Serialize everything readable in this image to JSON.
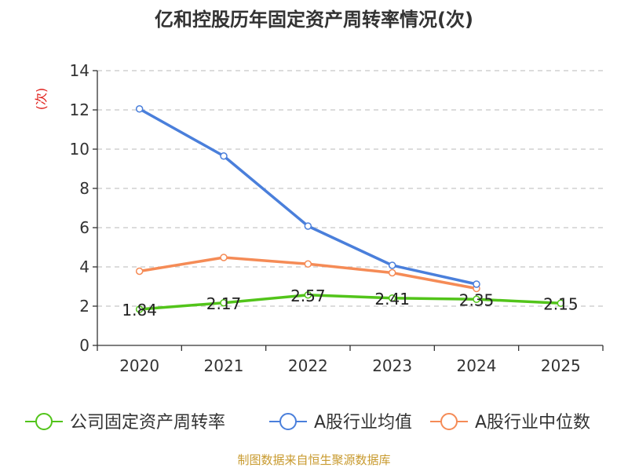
{
  "chart_data": {
    "type": "line",
    "title": "亿和控股历年固定资产周转率情况(次)",
    "ylabel": "(次)",
    "xlabel": "",
    "categories": [
      "2020",
      "2021",
      "2022",
      "2023",
      "2024",
      "2025"
    ],
    "ylim": [
      0,
      14
    ],
    "yticks": [
      0,
      2,
      4,
      6,
      8,
      10,
      12,
      14
    ],
    "grid": true,
    "legend_position": "bottom",
    "series": [
      {
        "name": "公司固定资产周转率",
        "color": "#52c41a",
        "values": [
          1.84,
          2.17,
          2.57,
          2.41,
          2.35,
          2.15
        ],
        "labels": [
          "1.84",
          "2.17",
          "2.57",
          "2.41",
          "2.35",
          "2.15"
        ]
      },
      {
        "name": "A股行业均值",
        "color": "#4a7fdb",
        "values": [
          12.05,
          9.65,
          6.08,
          4.08,
          3.12,
          null
        ]
      },
      {
        "name": "A股行业中位数",
        "color": "#f58b56",
        "values": [
          3.78,
          4.48,
          4.15,
          3.7,
          2.9,
          null
        ]
      }
    ],
    "source": "制图数据来自恒生聚源数据库",
    "source_color": "#c89a2e"
  }
}
